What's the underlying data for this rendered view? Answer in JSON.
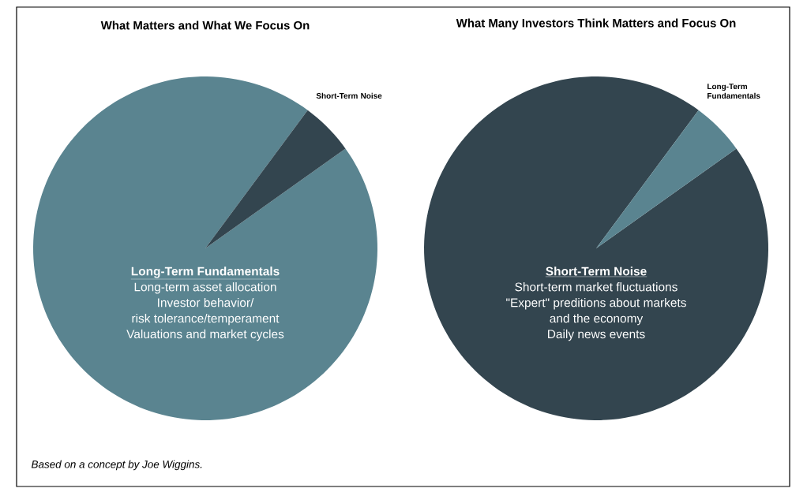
{
  "chart_data": [
    {
      "type": "pie",
      "title": "What Matters and What We Focus On",
      "categories": [
        "Long-Term Fundamentals",
        "Short-Term Noise"
      ],
      "values": [
        95,
        5
      ],
      "colors": [
        "#5a8490",
        "#33454f"
      ],
      "annotations": [
        "Long-term asset allocation",
        "Investor behavior/",
        "risk tolerance/temperament",
        "Valuations and market cycles"
      ]
    },
    {
      "type": "pie",
      "title": "What Many Investors Think Matters and Focus On",
      "categories": [
        "Short-Term Noise",
        "Long-Term Fundamentals"
      ],
      "values": [
        95,
        5
      ],
      "colors": [
        "#33454f",
        "#5a8490"
      ],
      "annotations": [
        "Short-term market fluctuations",
        "\"Expert\" preditions about markets",
        "and the economy",
        "Daily news events"
      ]
    },
    {
      "type": "other",
      "annotations": [
        "Based on a concept by Joe Wiggins."
      ]
    }
  ]
}
